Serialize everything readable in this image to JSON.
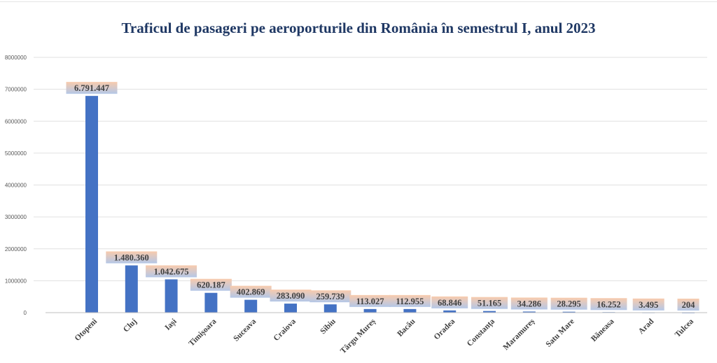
{
  "chart_data": {
    "type": "bar",
    "title": "Traficul de pasageri pe aeroporturile din România în semestrul I, anul 2023",
    "categories": [
      "Otopeni",
      "Cluj",
      "Iași",
      "Timișoara",
      "Suceava",
      "Craiova",
      "Sibiu",
      "Târgu Mureș",
      "Bacău",
      "Oradea",
      "Constanța",
      "Maramureș",
      "Satu Mare",
      "Băneasa",
      "Arad",
      "Tulcea"
    ],
    "values": [
      6791447,
      1480360,
      1042675,
      620187,
      402869,
      283090,
      259739,
      113027,
      112955,
      68846,
      51165,
      34286,
      28295,
      16252,
      3495,
      204
    ],
    "data_labels": [
      "6.791.447",
      "1.480.360",
      "1.042.675",
      "620.187",
      "402.869",
      "283.090",
      "259.739",
      "113.027",
      "112.955",
      "68.846",
      "51.165",
      "34.286",
      "28.295",
      "16.252",
      "3.495",
      "204"
    ],
    "yticks": [
      "0",
      "1000000",
      "2000000",
      "3000000",
      "4000000",
      "5000000",
      "6000000",
      "7000000",
      "8000000"
    ],
    "ylim": [
      0,
      8000000
    ],
    "grid": true,
    "legend": "none",
    "bar_color": "#4472c4",
    "label_colors": [
      "#f8cbad",
      "#b4c7e7"
    ],
    "title_color": "#1f3864"
  }
}
